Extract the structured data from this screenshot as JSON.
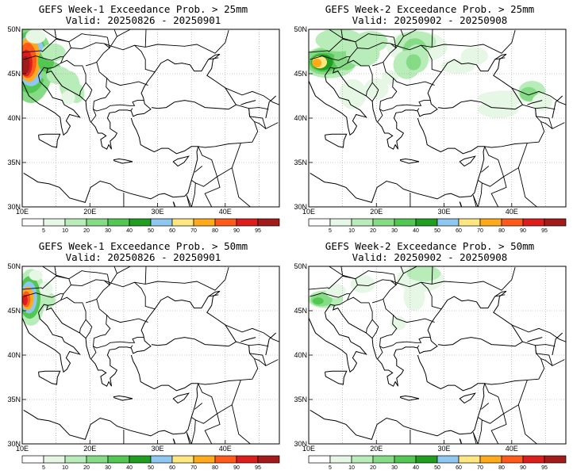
{
  "panels": [
    {
      "id": "w1-25",
      "title": "GEFS Week-1 Exceedance Prob. > 25mm",
      "valid": "Valid: 20250826 - 20250901"
    },
    {
      "id": "w2-25",
      "title": "GEFS Week-2 Exceedance Prob. > 25mm",
      "valid": "Valid: 20250902 - 20250908"
    },
    {
      "id": "w1-50",
      "title": "GEFS Week-1 Exceedance Prob. > 50mm",
      "valid": "Valid: 20250826 - 20250901"
    },
    {
      "id": "w2-50",
      "title": "GEFS Week-2 Exceedance Prob. > 50mm",
      "valid": "Valid: 20250902 - 20250908"
    }
  ],
  "axes": {
    "lon_ticks": [
      "10E",
      "20E",
      "30E",
      "40E"
    ],
    "lat_ticks": [
      "50N",
      "45N",
      "40N",
      "35N",
      "30N"
    ],
    "lon_range": [
      10,
      48
    ],
    "lat_range": [
      30,
      50
    ]
  },
  "colorbar": {
    "labels": [
      "5",
      "10",
      "20",
      "30",
      "40",
      "50",
      "60",
      "70",
      "80",
      "90",
      "95"
    ],
    "colors": [
      "#ffffff",
      "#e6f7e6",
      "#b8ecb8",
      "#86dc86",
      "#52c752",
      "#1f9e1f",
      "#8ec8f0",
      "#ffe680",
      "#ffaa1a",
      "#ff5a1a",
      "#dd1c1c",
      "#a31a1a"
    ]
  }
}
